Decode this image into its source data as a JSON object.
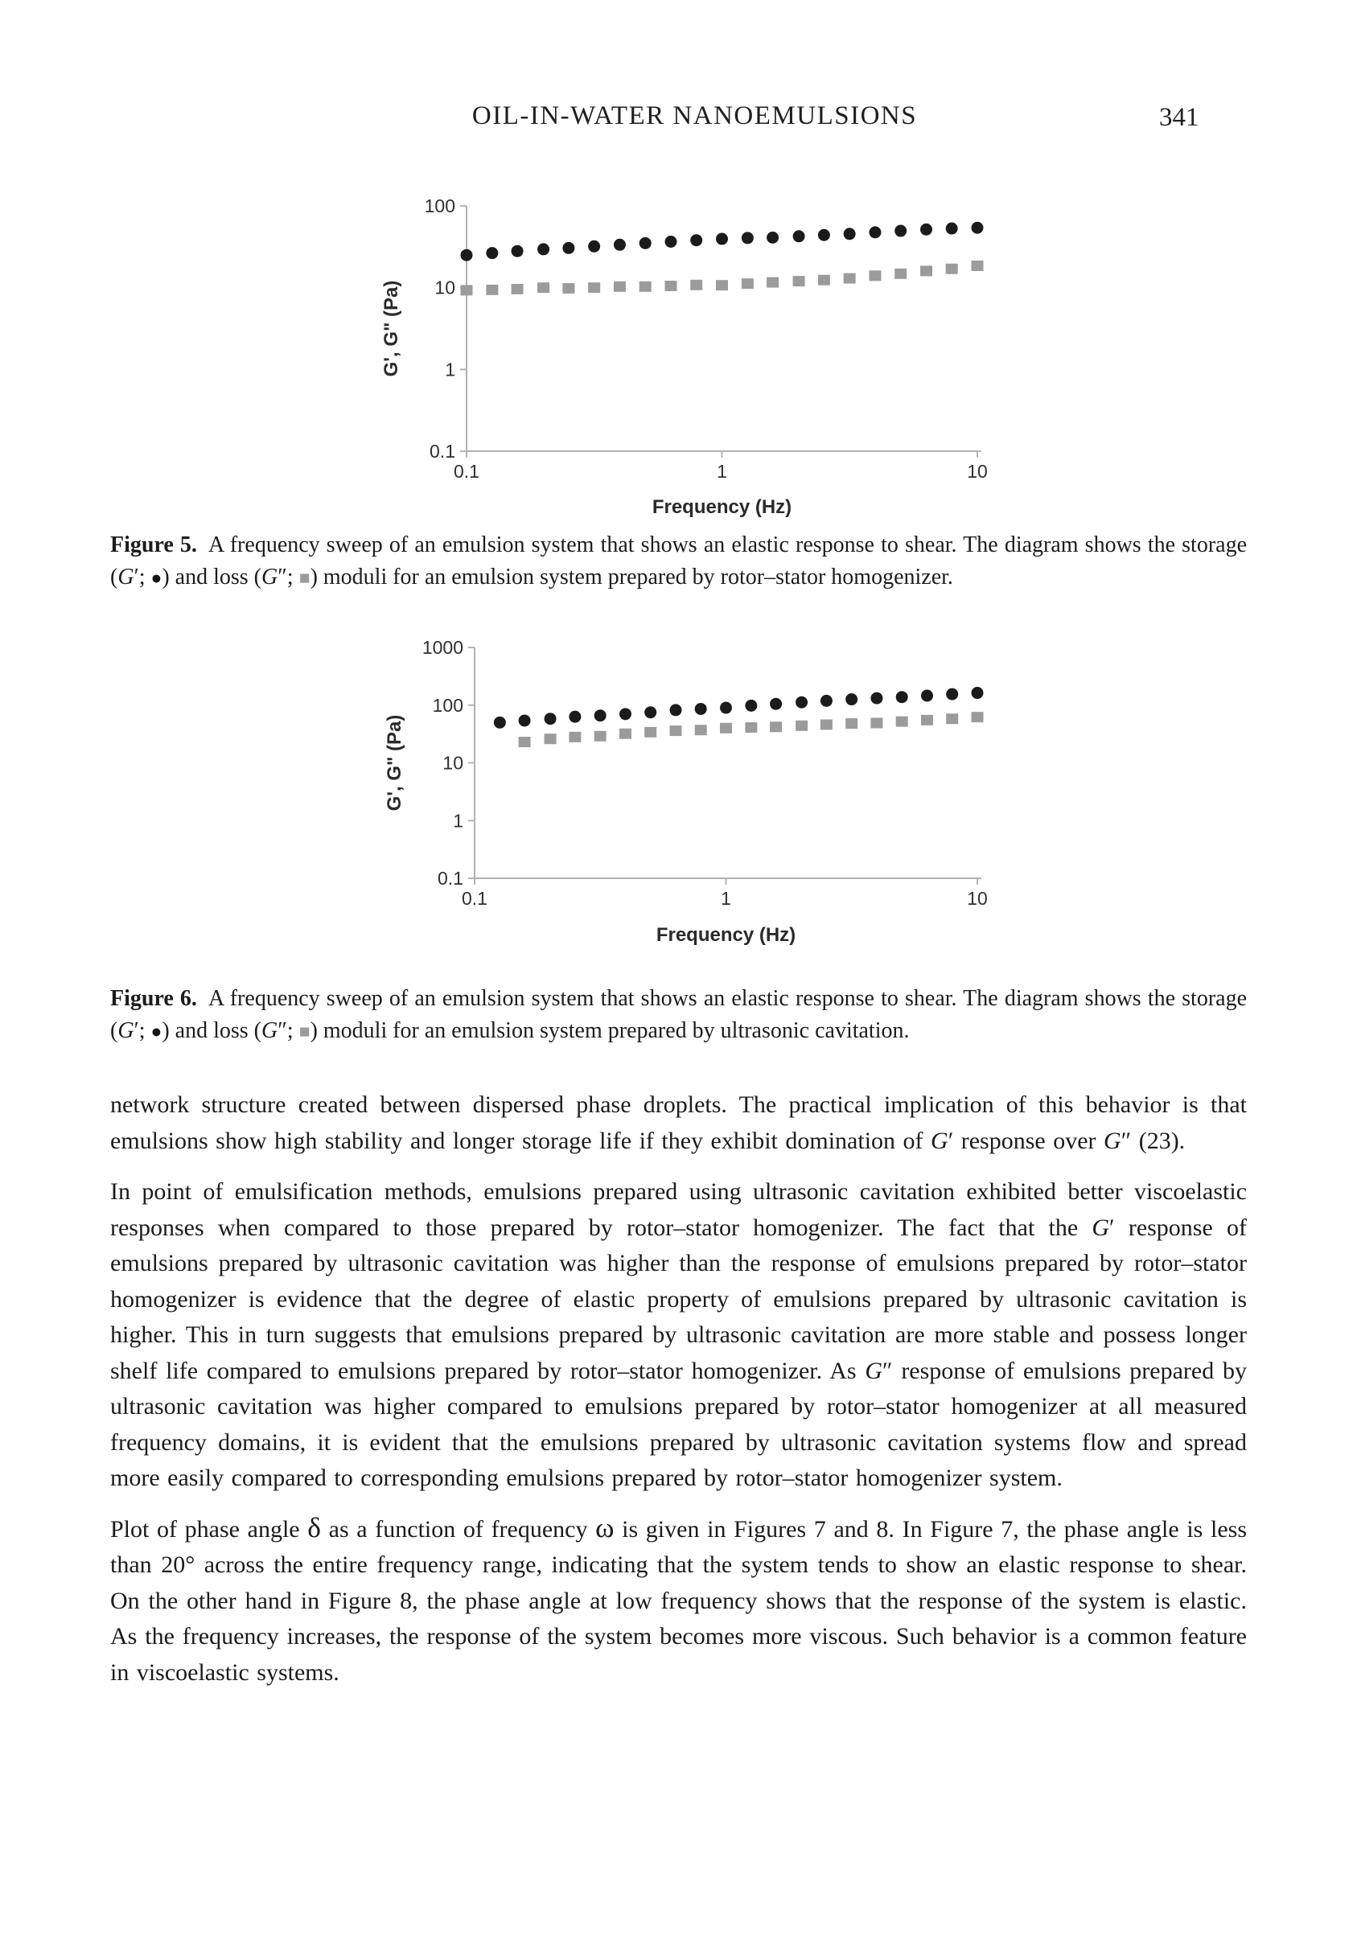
{
  "header": {
    "title": "OIL-IN-WATER NANOEMULSIONS",
    "page_number": "341"
  },
  "figures": [
    {
      "id": "figure5",
      "caption": [
        [
          "b",
          "Figure 5."
        ],
        [
          "n",
          " A frequency sweep of an emulsion system that shows an elastic response to shear. The diagram shows the storage ("
        ],
        [
          "i",
          "G"
        ],
        [
          "n",
          "′; "
        ],
        [
          "mc",
          "●"
        ],
        [
          "n",
          ") and loss ("
        ],
        [
          "i",
          "G"
        ],
        [
          "n",
          "″; "
        ],
        [
          "ms",
          "■"
        ],
        [
          "n",
          ") moduli for an emulsion system prepared by rotor–stator homogenizer."
        ]
      ]
    },
    {
      "id": "figure6",
      "caption": [
        [
          "b",
          "Figure 6."
        ],
        [
          "n",
          " A frequency sweep of an emulsion system that shows an elastic response to shear. The diagram shows the storage ("
        ],
        [
          "i",
          "G"
        ],
        [
          "n",
          "′; "
        ],
        [
          "mc",
          "●"
        ],
        [
          "n",
          ") and loss ("
        ],
        [
          "i",
          "G"
        ],
        [
          "n",
          "″; "
        ],
        [
          "ms",
          "■"
        ],
        [
          "n",
          ") moduli for an emulsion system prepared by ultrasonic cavitation."
        ]
      ]
    }
  ],
  "chart_data": [
    {
      "type": "scatter",
      "figure": "Figure 5",
      "xlabel": "Frequency (Hz)",
      "ylabel": "G', G\" (Pa)",
      "xscale": "log",
      "yscale": "log",
      "xlim": [
        0.1,
        10
      ],
      "ylim": [
        0.1,
        100
      ],
      "xticks": [
        0.1,
        1,
        10
      ],
      "xtick_labels": [
        "0.1",
        "1",
        "10"
      ],
      "yticks": [
        0.1,
        1,
        10,
        100
      ],
      "ytick_labels": [
        "0.1",
        "1",
        "10",
        "100"
      ],
      "grid": false,
      "legend": "none",
      "series": [
        {
          "name": "G′ storage modulus (rotor-stator homogenizer)",
          "marker": "circle",
          "color": "#1b1b1b",
          "x": [
            0.1,
            0.126,
            0.158,
            0.2,
            0.251,
            0.316,
            0.398,
            0.501,
            0.631,
            0.794,
            1,
            1.26,
            1.58,
            2,
            2.51,
            3.16,
            3.98,
            5.01,
            6.31,
            7.94,
            10
          ],
          "y": [
            25,
            26.5,
            28,
            29.5,
            30.5,
            32,
            33.5,
            35,
            36.5,
            38,
            39.5,
            40.5,
            41,
            42.5,
            44,
            45.5,
            47.5,
            49.5,
            51.5,
            53,
            54
          ]
        },
        {
          "name": "G″ loss modulus (rotor-stator homogenizer)",
          "marker": "square",
          "color": "#9b9b9b",
          "x": [
            0.1,
            0.126,
            0.158,
            0.2,
            0.251,
            0.316,
            0.398,
            0.501,
            0.631,
            0.794,
            1,
            1.26,
            1.58,
            2,
            2.51,
            3.16,
            3.98,
            5.01,
            6.31,
            7.94,
            10
          ],
          "y": [
            9.3,
            9.4,
            9.6,
            10,
            9.8,
            10,
            10.3,
            10.3,
            10.5,
            10.8,
            10.7,
            11.2,
            11.6,
            12,
            12.4,
            13,
            14,
            14.8,
            16,
            17,
            18.5
          ]
        }
      ]
    },
    {
      "type": "scatter",
      "figure": "Figure 6",
      "xlabel": "Frequency (Hz)",
      "ylabel": "G', G\" (Pa)",
      "xscale": "log",
      "yscale": "log",
      "xlim": [
        0.1,
        10
      ],
      "ylim": [
        0.1,
        1000
      ],
      "xticks": [
        0.1,
        1,
        10
      ],
      "xtick_labels": [
        "0.1",
        "1",
        "10"
      ],
      "yticks": [
        0.1,
        1,
        10,
        100,
        1000
      ],
      "ytick_labels": [
        "0.1",
        "1",
        "10",
        "100",
        "1000"
      ],
      "grid": false,
      "legend": "none",
      "series": [
        {
          "name": "G′ storage modulus (ultrasonic cavitation)",
          "marker": "circle",
          "color": "#1b1b1b",
          "x": [
            0.126,
            0.158,
            0.2,
            0.251,
            0.316,
            0.398,
            0.501,
            0.631,
            0.794,
            1,
            1.26,
            1.58,
            2,
            2.51,
            3.16,
            3.98,
            5.01,
            6.31,
            7.94,
            10
          ],
          "y": [
            50,
            54,
            58,
            63,
            66,
            70,
            75,
            82,
            86,
            90,
            98,
            105,
            112,
            119,
            126,
            132,
            138,
            146,
            155,
            163
          ]
        },
        {
          "name": "G″ loss modulus (ultrasonic cavitation)",
          "marker": "square",
          "color": "#9b9b9b",
          "x": [
            0.158,
            0.2,
            0.251,
            0.316,
            0.398,
            0.501,
            0.631,
            0.794,
            1,
            1.26,
            1.58,
            2,
            2.51,
            3.16,
            3.98,
            5.01,
            6.31,
            7.94,
            10
          ],
          "y": [
            23,
            26,
            28,
            29,
            32,
            34,
            36,
            37,
            40,
            41,
            42,
            44,
            46,
            48,
            49,
            52,
            55,
            58,
            62
          ]
        }
      ]
    }
  ],
  "paragraphs": [
    [
      [
        "n",
        "network structure created between dispersed phase droplets. The practical implication of this behavior is that emulsions show high stability and longer storage life if they exhibit domination of "
      ],
      [
        "i",
        "G"
      ],
      [
        "n",
        "′ response over "
      ],
      [
        "i",
        "G"
      ],
      [
        "n",
        "″ (23)."
      ]
    ],
    [
      [
        "n",
        "In point of emulsification methods, emulsions prepared using ultrasonic cavitation exhibited better viscoelastic responses when compared to those prepared by rotor–stator homogenizer. The fact that the "
      ],
      [
        "i",
        "G"
      ],
      [
        "n",
        "′ response of emulsions prepared by ultrasonic cavitation was higher than the response of emulsions prepared by rotor–stator homogenizer is evidence that the degree of elastic property of emulsions prepared by ultrasonic cavitation is higher. This in turn suggests that emulsions prepared by ultrasonic cavitation are more stable and possess longer shelf life compared to emulsions prepared by rotor–stator homogenizer. As "
      ],
      [
        "i",
        "G"
      ],
      [
        "n",
        "″ response of emulsions prepared by ultrasonic cavitation was higher compared to emulsions prepared by rotor–stator homogenizer at all measured frequency domains, it is evident that the emulsions prepared by ultrasonic cavitation systems flow and spread more easily compared to corresponding emulsions prepared by rotor–stator homogenizer system."
      ]
    ],
    [
      [
        "n",
        "Plot of phase angle "
      ],
      [
        "g",
        "δ"
      ],
      [
        "n",
        " as a function of frequency "
      ],
      [
        "g",
        "ω"
      ],
      [
        "n",
        " is given in Figures 7 and 8. In Figure 7, the phase angle is less than 20° across the entire frequency range, indicating that the system tends to show an elastic response to shear. On the other hand in Figure 8, the phase angle at low frequency shows that the response of the system is elastic. As the frequency increases, the response of the system becomes more viscous. Such behavior is a common feature in viscoelastic systems."
      ]
    ]
  ]
}
